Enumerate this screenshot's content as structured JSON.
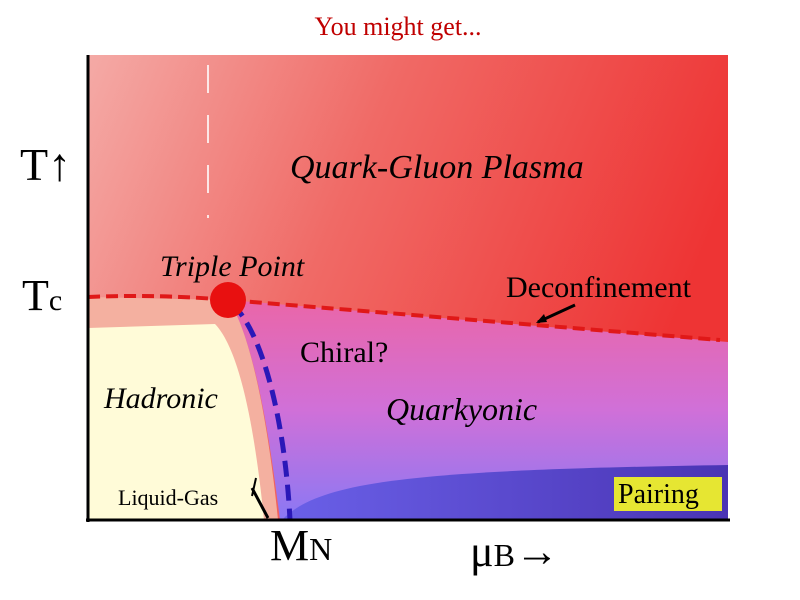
{
  "header": {
    "title": "You might get..."
  },
  "axes": {
    "y_label": "T↑",
    "tc_label": {
      "main": "T",
      "sub": "c"
    },
    "mn_label": {
      "main": "M",
      "sub": "N"
    },
    "x_label": {
      "main": "μ",
      "sub": "B",
      "arrow": "→"
    }
  },
  "regions": {
    "qgp": "Quark-Gluon Plasma",
    "hadronic": "Hadronic",
    "quarkyonic": "Quarkyonic",
    "pairing": "Pairing"
  },
  "annotations": {
    "triple_point": "Triple Point",
    "deconfinement": "Deconfinement",
    "chiral": "Chiral?",
    "liquid_gas": "Liquid-Gas"
  }
}
